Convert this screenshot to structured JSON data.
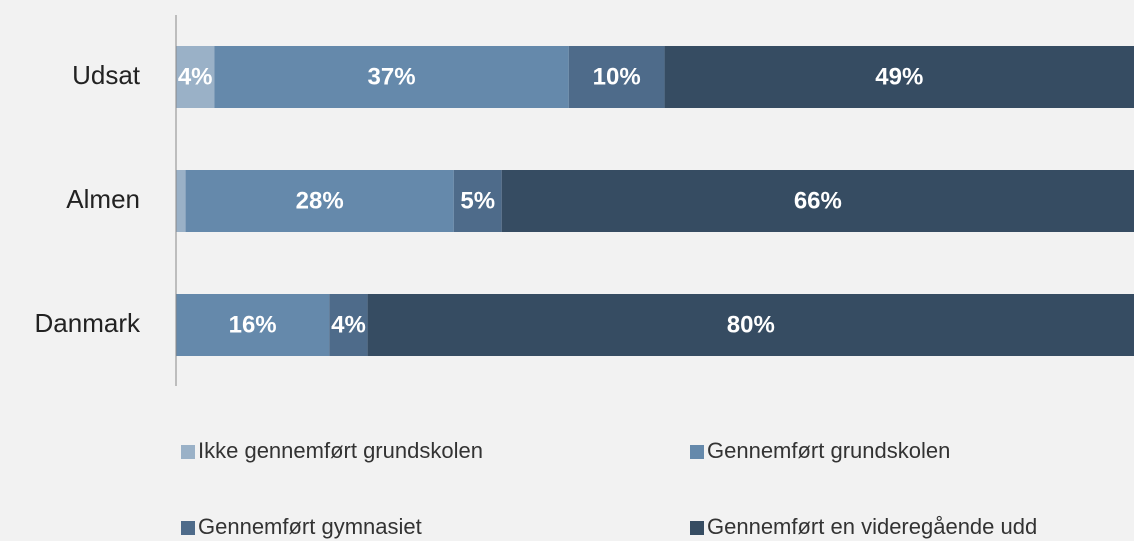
{
  "chart_data": {
    "type": "stacked-bar-horizontal",
    "categories": [
      "Udsat",
      "Almen",
      "Danmark"
    ],
    "xlim": [
      0,
      100
    ],
    "series": [
      {
        "name": "Ikke gennemført grundskolen",
        "color": "#9ab1c7",
        "values": [
          4,
          1,
          0
        ],
        "value_labels": [
          "4%",
          null,
          null
        ]
      },
      {
        "name": "Gennemført grundskolen",
        "color": "#6589ab",
        "values": [
          37,
          28,
          16
        ],
        "value_labels": [
          "37%",
          "28%",
          "16%"
        ]
      },
      {
        "name": "Gennemført gymnasiet",
        "color": "#4e6b8a",
        "values": [
          10,
          5,
          4
        ],
        "value_labels": [
          "10%",
          "5%",
          "4%"
        ]
      },
      {
        "name": "Gennemført en videregående udd",
        "color": "#364c62",
        "values": [
          49,
          66,
          80
        ],
        "value_labels": [
          "49%",
          "66%",
          "80%"
        ]
      }
    ]
  }
}
